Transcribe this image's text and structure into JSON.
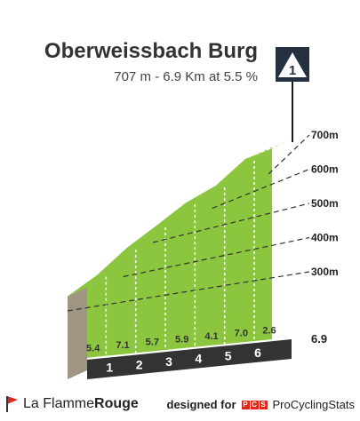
{
  "header": {
    "title": "Oberweissbach Burg",
    "subtitle": "707 m - 6.9 Km at 5.5 %",
    "category_badge": "1"
  },
  "chart_data": {
    "type": "area",
    "x_unit": "km",
    "distance_km": [
      0,
      1,
      2,
      3,
      4,
      5,
      6,
      6.9
    ],
    "elevation_m": [
      327,
      381,
      452,
      509,
      568,
      609,
      679,
      702
    ],
    "segment_gradients": [
      "5.4",
      "7.1",
      "5.7",
      "5.9",
      "4.1",
      "7.0",
      "2.6"
    ],
    "km_markers": [
      "1",
      "2",
      "3",
      "4",
      "5",
      "6"
    ],
    "end_distance_label": "6.9",
    "altitude_labels": [
      "300m",
      "400m",
      "500m",
      "600m",
      "700m"
    ],
    "ylim": [
      300,
      700
    ]
  },
  "footer": {
    "brand_part1": "La Flamme",
    "brand_part2": "Rouge",
    "designed_for": "designed for",
    "pcs_letters": [
      "P",
      "C",
      "S"
    ],
    "pcs_name": "ProCyclingStats"
  },
  "colors": {
    "slope_fill": "#8cc63f",
    "steep_band": "#e0261b",
    "moderate_band": "#1f5c8a",
    "base": "#333333",
    "side": "#9e9683"
  }
}
